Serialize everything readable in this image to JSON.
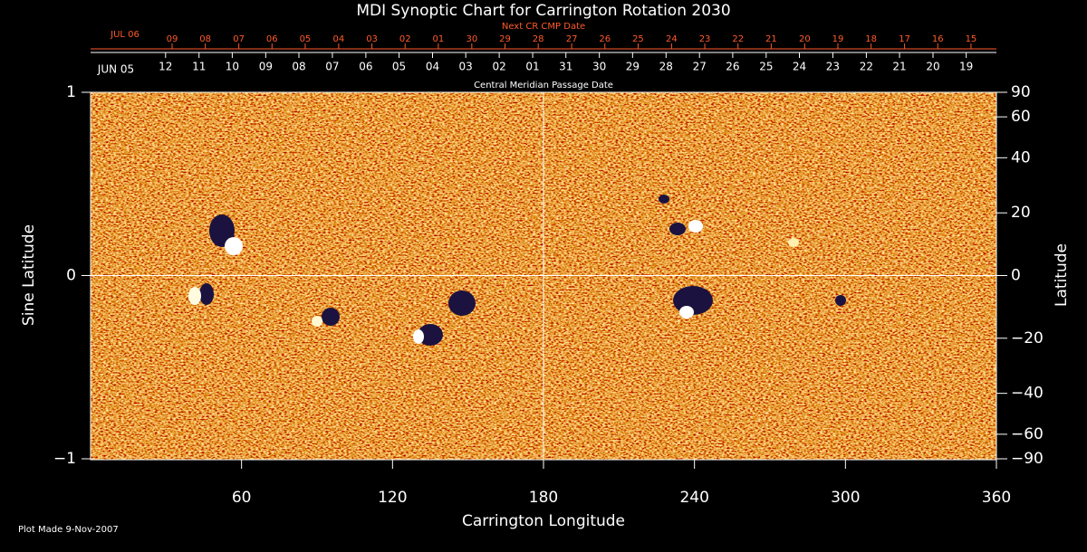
{
  "chart_data": {
    "type": "synoptic-map",
    "title": "MDI Synoptic Chart for Carrington Rotation 2030",
    "xlabel": "Carrington Longitude",
    "ylabel": "Sine Latitude",
    "y2label": "Latitude",
    "xlim": [
      0,
      360
    ],
    "xticks": [
      60,
      120,
      180,
      240,
      300,
      360
    ],
    "ylim": [
      -1,
      1
    ],
    "yticks": [
      {
        "value": -1,
        "label": "−1"
      },
      0,
      1
    ],
    "y2scale": "sine",
    "y2ticks": [
      90,
      60,
      40,
      20,
      0,
      {
        "value": -20,
        "label": "−20"
      },
      {
        "value": -40,
        "label": "−40"
      },
      {
        "value": -60,
        "label": "−60"
      },
      {
        "value": -90,
        "label": "−90"
      }
    ],
    "reference_lines": {
      "x": 180,
      "y": 0
    },
    "cmp_axis": {
      "title": "Central Meridian Passage Date",
      "month": "JUN 05",
      "labels": [
        "12",
        "11",
        "10",
        "09",
        "08",
        "07",
        "06",
        "05",
        "04",
        "03",
        "02",
        "01",
        "31",
        "30",
        "29",
        "28",
        "27",
        "26",
        "25",
        "24",
        "23",
        "22",
        "21",
        "20",
        "19"
      ],
      "x": [
        29.8,
        43.1,
        56.3,
        69.6,
        82.8,
        96.1,
        109.4,
        122.6,
        135.9,
        149.1,
        162.4,
        175.7,
        188.9,
        202.2,
        215.4,
        228.7,
        242.0,
        255.2,
        268.5,
        281.7,
        295.0,
        308.3,
        321.5,
        334.8,
        348.0
      ]
    },
    "next_cmp_axis": {
      "title": "Next CR CMP Date",
      "month": "JUL 06",
      "labels": [
        "09",
        "08",
        "07",
        "06",
        "05",
        "04",
        "03",
        "02",
        "01",
        "30",
        "29",
        "28",
        "27",
        "26",
        "25",
        "24",
        "23",
        "22",
        "21",
        "20",
        "19",
        "18",
        "17",
        "16",
        "15"
      ],
      "x": [
        32.4,
        45.6,
        58.9,
        72.1,
        85.3,
        98.6,
        111.8,
        125.0,
        138.2,
        151.5,
        164.7,
        177.9,
        191.2,
        204.4,
        217.6,
        230.9,
        244.1,
        257.3,
        270.5,
        283.8,
        297.0,
        310.2,
        323.5,
        336.7,
        349.9
      ]
    },
    "footer": "Plot Made  9-Nov-2007"
  }
}
